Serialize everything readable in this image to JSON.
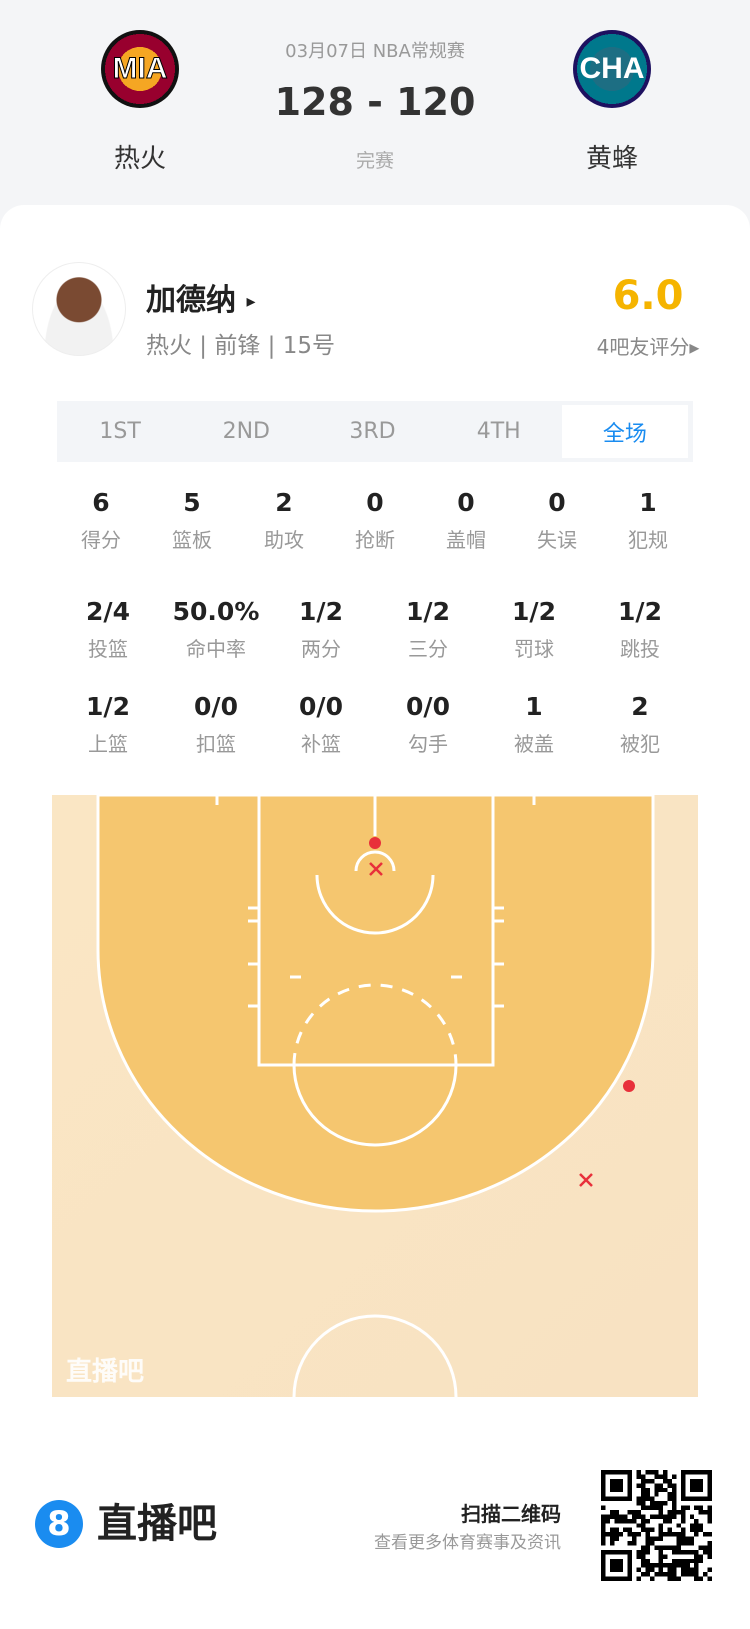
{
  "header": {
    "date_league": "03月07日 NBA常规赛",
    "score": "128 - 120",
    "status": "完赛",
    "home": {
      "abbr": "MIA",
      "name": "热火"
    },
    "away": {
      "abbr": "CHA",
      "name": "黄蜂"
    }
  },
  "player": {
    "name": "加德纳",
    "name_arrow": "▸",
    "info": "热火 | 前锋 | 15号",
    "rating": "6.0",
    "rating_label": "4吧友评分▸",
    "rating_color": "#f5b400"
  },
  "tabs": [
    {
      "label": "1ST"
    },
    {
      "label": "2ND"
    },
    {
      "label": "3RD"
    },
    {
      "label": "4TH"
    },
    {
      "label": "全场",
      "selected": true
    }
  ],
  "stats_row1": [
    {
      "v": "6",
      "l": "得分"
    },
    {
      "v": "5",
      "l": "篮板"
    },
    {
      "v": "2",
      "l": "助攻"
    },
    {
      "v": "0",
      "l": "抢断"
    },
    {
      "v": "0",
      "l": "盖帽"
    },
    {
      "v": "0",
      "l": "失误"
    },
    {
      "v": "1",
      "l": "犯规"
    }
  ],
  "stats_row2": [
    {
      "v": "2/4",
      "l": "投篮"
    },
    {
      "v": "50.0%",
      "l": "命中率"
    },
    {
      "v": "1/2",
      "l": "两分"
    },
    {
      "v": "1/2",
      "l": "三分"
    },
    {
      "v": "1/2",
      "l": "罚球"
    },
    {
      "v": "1/2",
      "l": "跳投"
    }
  ],
  "stats_row3": [
    {
      "v": "1/2",
      "l": "上篮"
    },
    {
      "v": "0/0",
      "l": "扣篮"
    },
    {
      "v": "0/0",
      "l": "补篮"
    },
    {
      "v": "0/0",
      "l": "勾手"
    },
    {
      "v": "1",
      "l": "被盖"
    },
    {
      "v": "2",
      "l": "被犯"
    }
  ],
  "court": {
    "watermark": "直播吧",
    "shots": [
      {
        "result": "made",
        "zone": "rim"
      },
      {
        "result": "missed",
        "zone": "rim"
      },
      {
        "result": "made",
        "zone": "right wing three"
      },
      {
        "result": "missed",
        "zone": "right wing three"
      }
    ]
  },
  "footer": {
    "logo_glyph": "8",
    "brand": "直播吧",
    "scan": "扫描二维码",
    "scan_sub": "查看更多体育赛事及资讯",
    "accent": "#1a8cf0"
  }
}
